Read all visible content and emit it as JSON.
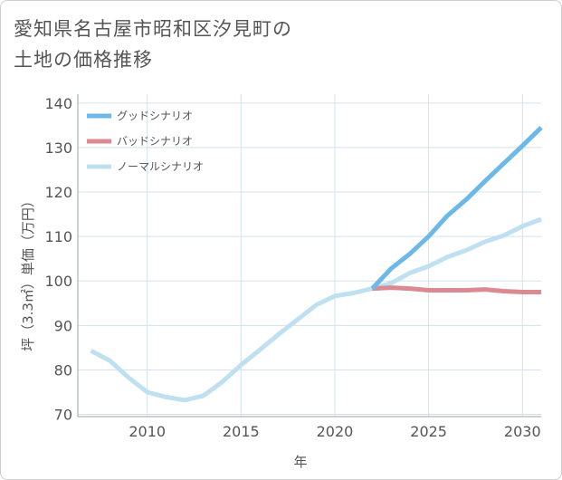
{
  "title": "愛知県名古屋市昭和区汐見町の\n土地の価格推移",
  "chart_data": {
    "type": "line",
    "xlabel": "年",
    "ylabel": "坪（3.3㎡）単価（万円）",
    "xlim": [
      2006.3,
      2031
    ],
    "ylim": [
      69.5,
      142
    ],
    "xticks": [
      2010,
      2015,
      2020,
      2025,
      2030
    ],
    "yticks": [
      70,
      80,
      90,
      100,
      110,
      120,
      130,
      140
    ],
    "grid": true,
    "legend_position": "top-left",
    "series": [
      {
        "name": "グッドシナリオ",
        "color": "#6cb8e8",
        "x": [
          2022,
          2023,
          2024,
          2025,
          2026,
          2027,
          2028,
          2029,
          2030,
          2031
        ],
        "values": [
          98.3,
          102.8,
          106.1,
          110.0,
          114.7,
          118.3,
          122.4,
          126.4,
          130.4,
          134.5
        ]
      },
      {
        "name": "バッドシナリオ",
        "color": "#dc8a92",
        "x": [
          2022,
          2023,
          2024,
          2025,
          2026,
          2027,
          2028,
          2029,
          2030,
          2031
        ],
        "values": [
          98.3,
          98.5,
          98.3,
          97.9,
          97.9,
          97.9,
          98.1,
          97.7,
          97.5,
          97.5
        ]
      },
      {
        "name": "ノーマルシナリオ",
        "color": "#bfe0f0",
        "x": [
          2007,
          2008,
          2009,
          2010,
          2011,
          2012,
          2013,
          2014,
          2015,
          2016,
          2017,
          2018,
          2019,
          2020,
          2021,
          2022,
          2023,
          2024,
          2025,
          2026,
          2027,
          2028,
          2029,
          2030,
          2031
        ],
        "values": [
          84.3,
          82.1,
          78.3,
          75.0,
          73.9,
          73.2,
          74.2,
          77.3,
          81.1,
          84.5,
          88.0,
          91.3,
          94.6,
          96.6,
          97.3,
          98.3,
          99.5,
          101.8,
          103.3,
          105.4,
          106.9,
          108.8,
          110.2,
          112.3,
          113.9
        ]
      }
    ]
  }
}
